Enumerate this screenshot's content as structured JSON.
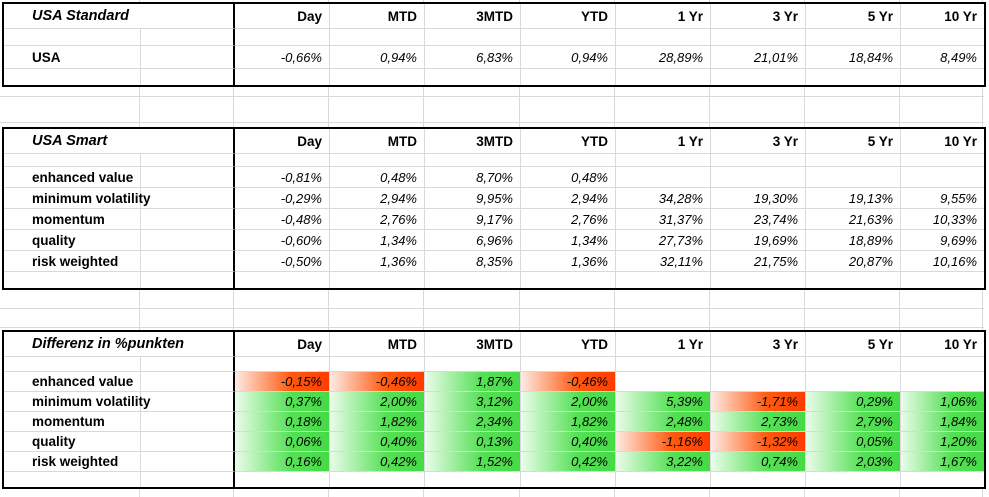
{
  "sheet": {
    "columns": [
      "Day",
      "MTD",
      "3MTD",
      "YTD",
      "1 Yr",
      "3 Yr",
      "5 Yr",
      "10 Yr"
    ],
    "tables": [
      {
        "title": "USA Standard",
        "heatmap": false,
        "rows": [
          {
            "label": "USA",
            "values": [
              "-0,66%",
              "0,94%",
              "6,83%",
              "0,94%",
              "28,89%",
              "21,01%",
              "18,84%",
              "8,49%"
            ]
          }
        ]
      },
      {
        "title": "USA Smart",
        "heatmap": false,
        "rows": [
          {
            "label": "enhanced value",
            "values": [
              "-0,81%",
              "0,48%",
              "8,70%",
              "0,48%",
              "",
              "",
              "",
              ""
            ]
          },
          {
            "label": "minimum volatility",
            "values": [
              "-0,29%",
              "2,94%",
              "9,95%",
              "2,94%",
              "34,28%",
              "19,30%",
              "19,13%",
              "9,55%"
            ]
          },
          {
            "label": "momentum",
            "values": [
              "-0,48%",
              "2,76%",
              "9,17%",
              "2,76%",
              "31,37%",
              "23,74%",
              "21,63%",
              "10,33%"
            ]
          },
          {
            "label": "quality",
            "values": [
              "-0,60%",
              "1,34%",
              "6,96%",
              "1,34%",
              "27,73%",
              "19,69%",
              "18,89%",
              "9,69%"
            ]
          },
          {
            "label": "risk weighted",
            "values": [
              "-0,50%",
              "1,36%",
              "8,35%",
              "1,36%",
              "32,11%",
              "21,75%",
              "20,87%",
              "10,16%"
            ]
          }
        ]
      },
      {
        "title": "Differenz in %punkten",
        "heatmap": true,
        "rows": [
          {
            "label": "enhanced value",
            "values": [
              "-0,15%",
              "-0,46%",
              "1,87%",
              "-0,46%",
              "",
              "",
              "",
              ""
            ]
          },
          {
            "label": "minimum volatility",
            "values": [
              "0,37%",
              "2,00%",
              "3,12%",
              "2,00%",
              "5,39%",
              "-1,71%",
              "0,29%",
              "1,06%"
            ]
          },
          {
            "label": "momentum",
            "values": [
              "0,18%",
              "1,82%",
              "2,34%",
              "1,82%",
              "2,48%",
              "2,73%",
              "2,79%",
              "1,84%"
            ]
          },
          {
            "label": "quality",
            "values": [
              "0,06%",
              "0,40%",
              "0,13%",
              "0,40%",
              "-1,16%",
              "-1,32%",
              "0,05%",
              "1,20%"
            ]
          },
          {
            "label": "risk weighted",
            "values": [
              "0,16%",
              "0,42%",
              "1,52%",
              "0,42%",
              "3,22%",
              "0,74%",
              "2,03%",
              "1,67%"
            ]
          }
        ]
      }
    ],
    "colors": {
      "positive_fill_start": "#ebfceb",
      "positive_fill_end": "#46da46",
      "negative_fill_start": "#fdebe4",
      "negative_fill_end": "#ff3c00",
      "table_border": "#000000",
      "gridline": "#d9d9d9"
    }
  }
}
